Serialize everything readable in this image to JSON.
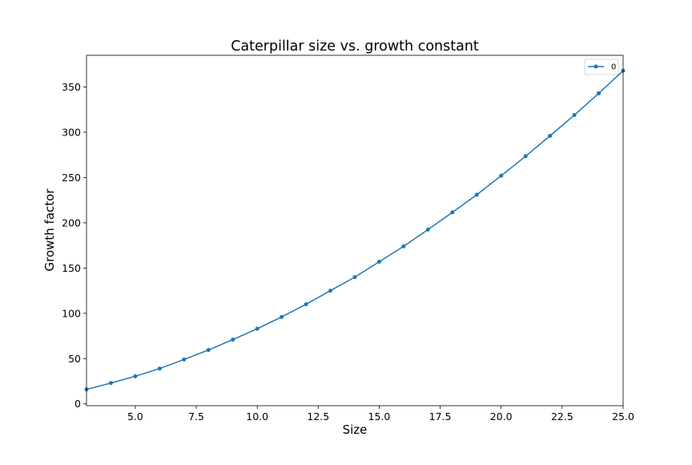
{
  "chart_data": {
    "type": "line",
    "title": "Caterpillar size vs. growth constant",
    "xlabel": "Size",
    "ylabel": "Growth factor",
    "xlim": [
      3,
      25
    ],
    "ylim": [
      -2,
      385
    ],
    "xticks": [
      5.0,
      7.5,
      10.0,
      12.5,
      15.0,
      17.5,
      20.0,
      22.5,
      25.0
    ],
    "xtick_labels": [
      "5.0",
      "7.5",
      "10.0",
      "12.5",
      "15.0",
      "17.5",
      "20.0",
      "22.5",
      "25.0"
    ],
    "yticks": [
      0,
      50,
      100,
      150,
      200,
      250,
      300,
      350
    ],
    "ytick_labels": [
      "0",
      "50",
      "100",
      "150",
      "200",
      "250",
      "300",
      "350"
    ],
    "grid": false,
    "legend_position": "top-right",
    "series": [
      {
        "name": "0",
        "color": "#1f77b4",
        "marker": "dot",
        "x": [
          3,
          4,
          5,
          6,
          7,
          8,
          9,
          10,
          11,
          12,
          13,
          14,
          15,
          16,
          17,
          18,
          19,
          20,
          21,
          22,
          23,
          24,
          25
        ],
        "y": [
          16,
          23,
          30.5,
          39,
          49,
          59.5,
          71,
          83,
          96,
          110,
          125,
          140,
          157,
          174,
          192.5,
          211.5,
          231,
          252,
          273.5,
          296,
          319,
          343,
          368
        ]
      }
    ]
  }
}
